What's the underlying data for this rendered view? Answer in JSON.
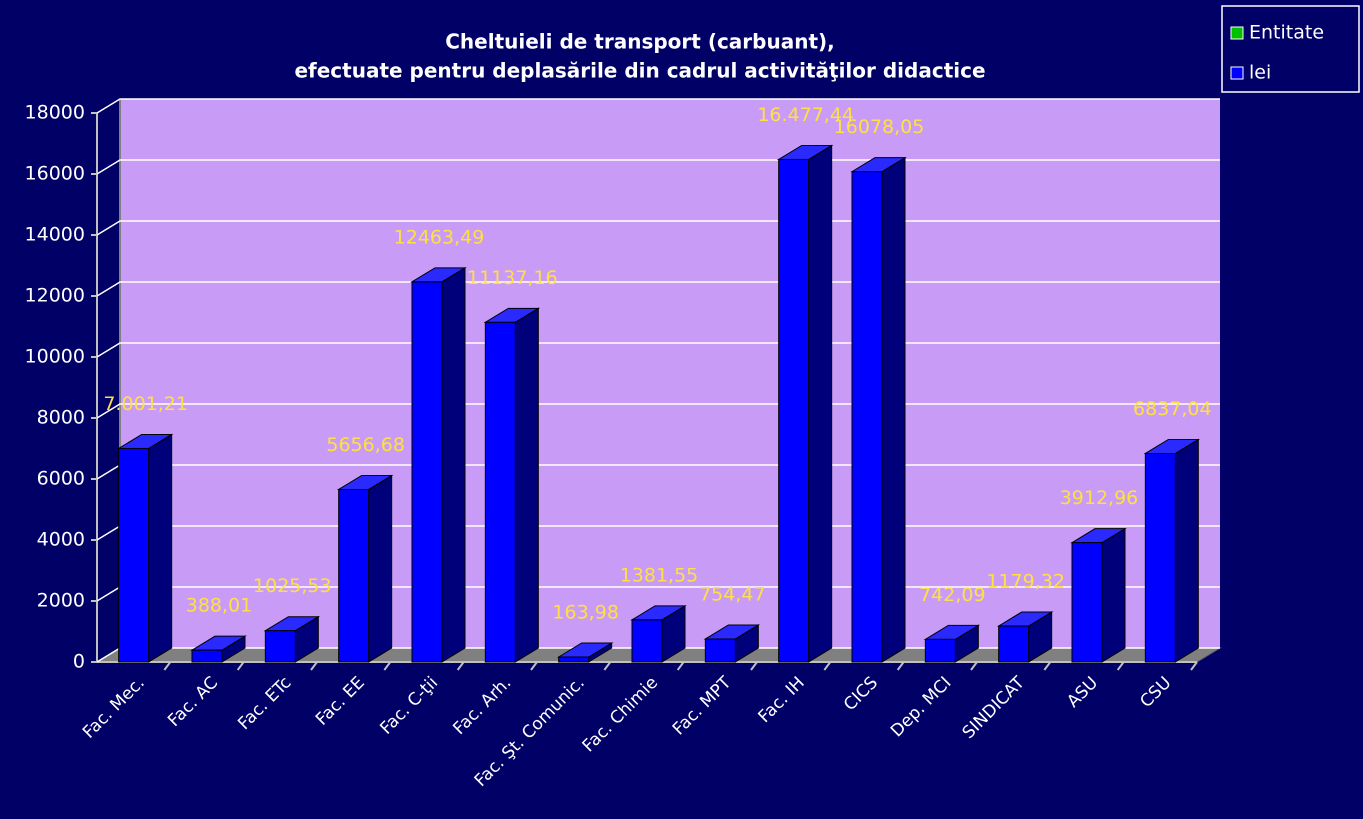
{
  "chart_data": {
    "type": "bar3d",
    "title": [
      "Cheltuieli de transport  (carbuant),",
      "efectuate  pentru deplasările din  cadrul activităţilor didactice"
    ],
    "categories": [
      "Fac. Mec.",
      "Fac. AC",
      "Fac. ETc",
      "Fac. EE",
      "Fac. C-ţii",
      "Fac. Arh.",
      "Fac. Şt. Comunic.",
      "Fac. Chimie",
      "Fac. MPT",
      "Fac. IH",
      "CICS",
      "Dep. MCI",
      "SINDICAT",
      "ASU",
      "CSU"
    ],
    "series": [
      {
        "color": "#0000ff",
        "values": [
          7001.21,
          388.01,
          1025.53,
          5656.68,
          12463.49,
          11137.16,
          163.98,
          1381.55,
          754.47,
          16477.44,
          16078.05,
          742.09,
          1179.32,
          3912.96,
          6837.04
        ],
        "value_labels": [
          "7.001,21",
          "388,01",
          "1025,53",
          "5656,68",
          "12463,49",
          "11137,16",
          "163,98",
          "1381,55",
          "754,47",
          "16.477,44",
          "16078,05",
          "742,09",
          "1179,32",
          "3912,96",
          "6837,04"
        ]
      }
    ],
    "ylim": [
      0,
      18000
    ],
    "yticks": [
      0,
      2000,
      4000,
      6000,
      8000,
      10000,
      12000,
      14000,
      16000,
      18000
    ],
    "grid": true,
    "legend": {
      "position": "top-right",
      "entries": [
        {
          "name": "Entitate",
          "color": "#00c000"
        },
        {
          "name": "lei",
          "color": "#0000ff"
        }
      ]
    }
  }
}
